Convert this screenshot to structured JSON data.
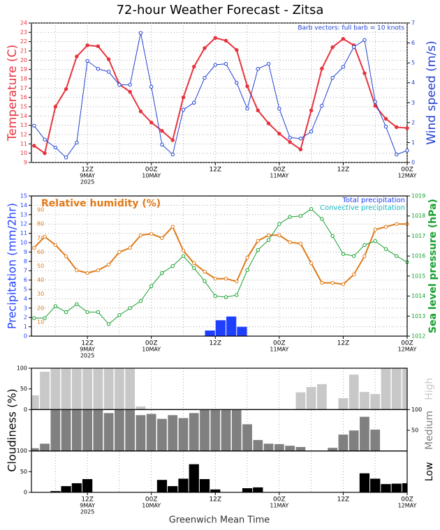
{
  "chart_data": [
    {
      "type": "line",
      "title": "72-hour Weather Forecast - Zitsa",
      "annotation": "Barb vectors: full barb = 10 knots",
      "xlim": [
        1.5,
        72
      ],
      "xticks": [
        {
          "value": 12,
          "label": "12Z"
        },
        {
          "value": 24,
          "label": "00Z"
        },
        {
          "value": 36,
          "label": "12Z"
        },
        {
          "value": 48,
          "label": "00Z"
        },
        {
          "value": 60,
          "label": "12Z"
        },
        {
          "value": 72,
          "label": "00Z"
        }
      ],
      "xtick_dates": [
        {
          "value": 12,
          "label": "9MAY"
        },
        {
          "value": 24,
          "label": "10MAY"
        },
        {
          "value": 48,
          "label": "11MAY"
        },
        {
          "value": 72,
          "label": "12MAY"
        }
      ],
      "xtick_year": {
        "value": 12,
        "label": "2025"
      },
      "minor_xticks": [
        6,
        18,
        30,
        42,
        54,
        66
      ],
      "x": [
        2,
        4,
        6,
        8,
        10,
        12,
        14,
        16,
        18,
        20,
        22,
        24,
        26,
        28,
        30,
        32,
        34,
        36,
        38,
        40,
        42,
        44,
        46,
        48,
        50,
        52,
        54,
        56,
        58,
        60,
        62,
        64,
        66,
        68,
        70,
        72
      ],
      "ylim": [
        9,
        24
      ],
      "yticks": [
        9,
        10,
        11,
        12,
        13,
        14,
        15,
        16,
        17,
        18,
        19,
        20,
        21,
        22,
        23,
        24
      ],
      "y2lim": [
        0,
        7
      ],
      "y2ticks": [
        0,
        1,
        2,
        3,
        4,
        5,
        6,
        7
      ],
      "grid": true,
      "series": [
        {
          "name": "Temperature (C)",
          "color": "#e8323c",
          "values": [
            10.8,
            10.0,
            15.0,
            16.9,
            20.4,
            21.6,
            21.5,
            20.1,
            17.4,
            16.6,
            14.5,
            13.3,
            12.4,
            11.4,
            16.0,
            19.3,
            21.3,
            22.4,
            22.1,
            21.1,
            17.2,
            14.6,
            13.2,
            12.1,
            11.2,
            10.4,
            14.6,
            19.1,
            21.4,
            22.3,
            21.6,
            18.6,
            15.1,
            13.7,
            12.8,
            12.7
          ]
        },
        {
          "name": "Wind speed (m/s)",
          "color": "#2040d0",
          "axis": "y2",
          "values": [
            1.85,
            1.15,
            0.75,
            0.25,
            1.0,
            5.1,
            4.7,
            4.55,
            3.9,
            3.9,
            6.5,
            3.8,
            0.9,
            0.4,
            2.65,
            3.0,
            4.25,
            4.9,
            4.95,
            4.0,
            2.7,
            4.7,
            4.95,
            2.7,
            1.25,
            1.2,
            1.55,
            2.85,
            4.25,
            4.8,
            5.8,
            6.15,
            3.05,
            1.8,
            0.4,
            0.6
          ]
        }
      ]
    },
    {
      "type": "combo",
      "ylabel": "Precipitation (mm/2hr)",
      "xlim": [
        1.5,
        72
      ],
      "xticks": [
        {
          "value": 12,
          "label": "12Z"
        },
        {
          "value": 24,
          "label": "00Z"
        },
        {
          "value": 36,
          "label": "12Z"
        },
        {
          "value": 48,
          "label": "00Z"
        },
        {
          "value": 60,
          "label": "12Z"
        },
        {
          "value": 72,
          "label": "00Z"
        }
      ],
      "xtick_dates": [
        {
          "value": 12,
          "label": "9MAY"
        },
        {
          "value": 24,
          "label": "10MAY"
        },
        {
          "value": 48,
          "label": "11MAY"
        },
        {
          "value": 72,
          "label": "12MAY"
        }
      ],
      "xtick_year": {
        "value": 12,
        "label": "2025"
      },
      "minor_xticks": [
        6,
        18,
        30,
        42,
        54,
        66
      ],
      "x": [
        2,
        4,
        6,
        8,
        10,
        12,
        14,
        16,
        18,
        20,
        22,
        24,
        26,
        28,
        30,
        32,
        34,
        36,
        38,
        40,
        42,
        44,
        46,
        48,
        50,
        52,
        54,
        56,
        58,
        60,
        62,
        64,
        66,
        68,
        70,
        72
      ],
      "ylim": [
        0,
        15
      ],
      "yticks": [
        0,
        1,
        2,
        3,
        4,
        5,
        6,
        7,
        8,
        9,
        10,
        11,
        12,
        13,
        14,
        15
      ],
      "y2lim": [
        1012,
        1019
      ],
      "y2ticks": [
        1012,
        1013,
        1014,
        1015,
        1016,
        1017,
        1018,
        1019
      ],
      "y3lim": [
        0,
        100
      ],
      "y3ticks": [
        10,
        20,
        30,
        40,
        50,
        60,
        70,
        80,
        90
      ],
      "grid": true,
      "series": [
        {
          "name": "Total precipitation",
          "color": "#1f3fff",
          "kind": "bar",
          "values": [
            0,
            0,
            0,
            0,
            0,
            0,
            0,
            0,
            0,
            0,
            0,
            0,
            0,
            0,
            0,
            0,
            0,
            0.6,
            1.7,
            2.1,
            1.0,
            0,
            0,
            0,
            0,
            0,
            0,
            0,
            0,
            0,
            0,
            0,
            0,
            0,
            0,
            0
          ]
        },
        {
          "name": "Convective precipitation",
          "color": "#10b8c0",
          "kind": "bar",
          "values": [
            0,
            0,
            0,
            0,
            0,
            0,
            0,
            0,
            0,
            0,
            0,
            0,
            0,
            0,
            0,
            0,
            0,
            0,
            0,
            0,
            0,
            0,
            0,
            0,
            0,
            0,
            0,
            0,
            0,
            0,
            0,
            0,
            0,
            0,
            0,
            0
          ]
        },
        {
          "name": "Relative humidity (%)",
          "color": "#e07a18",
          "axis": "y3",
          "values": [
            63,
            71,
            65,
            57,
            47,
            45,
            47,
            51,
            60,
            63,
            72,
            73,
            70,
            78,
            61,
            52,
            46,
            41,
            41,
            39,
            56,
            68,
            72,
            72,
            67,
            66,
            52,
            38,
            38,
            37,
            44,
            57,
            76,
            78,
            80,
            80
          ]
        },
        {
          "name": "Sea level pressure (hPa)",
          "color": "#18a030",
          "axis": "y2",
          "values": [
            1012.9,
            1012.9,
            1013.5,
            1013.2,
            1013.6,
            1013.2,
            1013.2,
            1012.6,
            1013.05,
            1013.4,
            1013.75,
            1014.5,
            1015.15,
            1015.5,
            1016.0,
            1015.4,
            1014.75,
            1014.0,
            1013.95,
            1014.05,
            1015.3,
            1016.3,
            1016.8,
            1017.6,
            1017.95,
            1018.0,
            1018.35,
            1017.85,
            1017.0,
            1016.1,
            1016.0,
            1016.55,
            1016.75,
            1016.35,
            1016.0,
            1015.7
          ]
        }
      ]
    },
    {
      "type": "bar",
      "ylabel": "Cloudiness (%)",
      "xlabel": "Greenwich Mean Time",
      "xlim": [
        1.5,
        72
      ],
      "xticks": [
        {
          "value": 12,
          "label": "12Z"
        },
        {
          "value": 24,
          "label": "00Z"
        },
        {
          "value": 36,
          "label": "12Z"
        },
        {
          "value": 48,
          "label": "00Z"
        },
        {
          "value": 60,
          "label": "12Z"
        },
        {
          "value": 72,
          "label": "00Z"
        }
      ],
      "xtick_dates": [
        {
          "value": 12,
          "label": "9MAY"
        },
        {
          "value": 24,
          "label": "10MAY"
        },
        {
          "value": 48,
          "label": "11MAY"
        },
        {
          "value": 72,
          "label": "12MAY"
        }
      ],
      "xtick_year": {
        "value": 12,
        "label": "2025"
      },
      "minor_xticks": [
        6,
        18,
        30,
        42,
        54,
        66
      ],
      "x": [
        2,
        4,
        6,
        8,
        10,
        12,
        14,
        16,
        18,
        20,
        22,
        24,
        26,
        28,
        30,
        32,
        34,
        36,
        38,
        40,
        42,
        44,
        46,
        48,
        50,
        52,
        54,
        56,
        58,
        60,
        62,
        64,
        66,
        68,
        70,
        72
      ],
      "series": [
        {
          "name": "High",
          "color": "#c8c8c8",
          "ylim": [
            0,
            100
          ],
          "yticks": [
            0,
            50,
            100
          ],
          "tick_side": "left",
          "values": [
            35,
            92,
            100,
            100,
            100,
            100,
            100,
            100,
            100,
            100,
            8,
            0,
            0,
            0,
            0,
            0,
            0,
            0,
            0,
            0,
            0,
            0,
            0,
            0,
            0,
            42,
            55,
            62,
            0,
            28,
            85,
            43,
            38,
            100,
            100,
            100
          ]
        },
        {
          "name": "Medium",
          "color": "#808080",
          "ylim": [
            0,
            100
          ],
          "yticks": [
            50,
            100
          ],
          "tick_side": "right",
          "values": [
            7,
            18,
            100,
            100,
            100,
            100,
            100,
            92,
            100,
            100,
            87,
            90,
            78,
            87,
            80,
            92,
            100,
            100,
            100,
            100,
            65,
            27,
            18,
            17,
            13,
            10,
            0,
            0,
            8,
            40,
            50,
            83,
            52,
            0,
            0,
            0
          ]
        },
        {
          "name": "Low",
          "color": "#000000",
          "ylim": [
            0,
            100
          ],
          "yticks": [
            0,
            50,
            100
          ],
          "tick_side": "left",
          "values": [
            0,
            0,
            3,
            15,
            22,
            32,
            0,
            0,
            0,
            0,
            0,
            0,
            30,
            15,
            33,
            68,
            32,
            7,
            0,
            0,
            10,
            12,
            0,
            0,
            0,
            0,
            0,
            0,
            0,
            0,
            0,
            46,
            33,
            20,
            21,
            22
          ]
        }
      ]
    }
  ]
}
